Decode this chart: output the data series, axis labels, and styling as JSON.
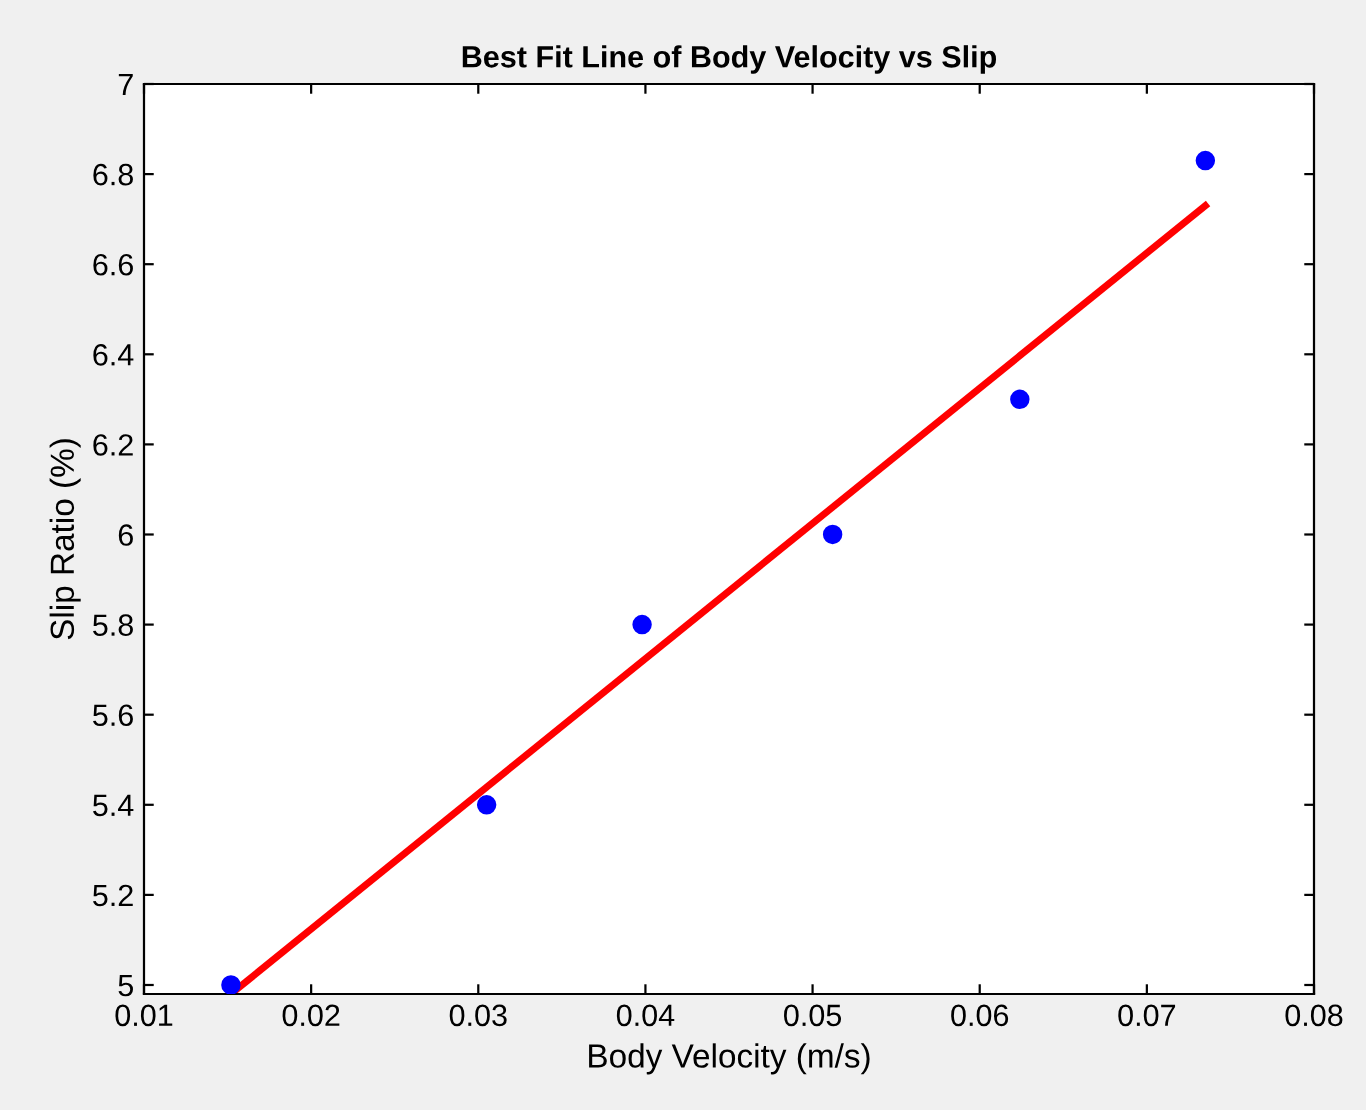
{
  "chart_data": {
    "type": "scatter",
    "title": "Best Fit Line of Body Velocity vs Slip",
    "xlabel": "Body Velocity (m/s)",
    "ylabel": "Slip Ratio (%)",
    "x": [
      0.0152,
      0.0305,
      0.0398,
      0.0512,
      0.0624,
      0.0735
    ],
    "series": [
      {
        "color": "#0000ff",
        "marker": "circle",
        "values": [
          5.0,
          5.4,
          5.8,
          6.0,
          6.3,
          6.83
        ]
      },
      {
        "type": "line",
        "color": "#ff0000",
        "line_style": "solid",
        "x": [
          0.0152,
          0.0735
        ],
        "values": [
          4.98,
          6.73
        ]
      }
    ],
    "xlim": [
      0.01,
      0.08
    ],
    "xticks": [
      0.01,
      0.02,
      0.03,
      0.04,
      0.05,
      0.06,
      0.07,
      0.08
    ],
    "ylim": [
      4.98,
      7
    ],
    "yticks": [
      5,
      5.2,
      5.4,
      5.6,
      5.8,
      6,
      6.2,
      6.4,
      6.6,
      6.8,
      7
    ],
    "grid": false,
    "legend": false
  }
}
